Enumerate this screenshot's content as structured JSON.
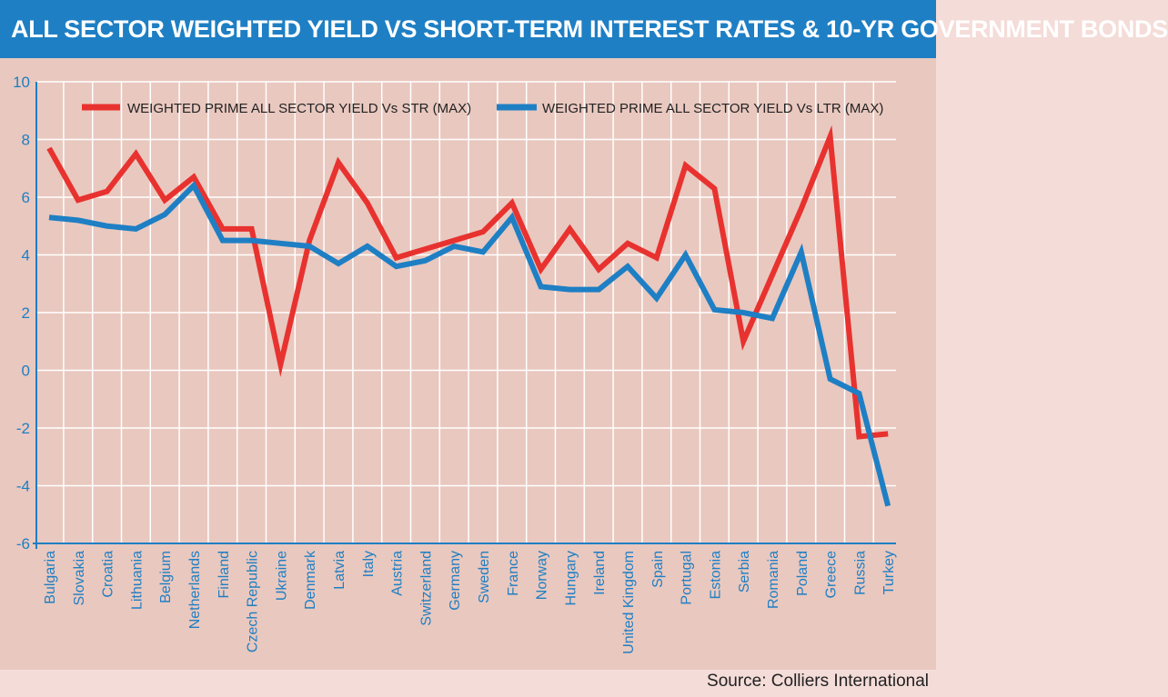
{
  "title": "ALL SECTOR WEIGHTED YIELD VS SHORT-TERM INTEREST RATES & 10-YR GOVERNMENT BONDS",
  "source": "Source: Colliers International",
  "colors": {
    "str": "#e8322f",
    "ltr": "#1e7fc4",
    "grid": "#ffffff",
    "axis": "#1e7fc4",
    "plot_bg": "#e9c8bf"
  },
  "chart_data": {
    "type": "line",
    "title": "ALL SECTOR WEIGHTED YIELD VS SHORT-TERM INTEREST RATES & 10-YR GOVERNMENT BONDS",
    "xlabel": "",
    "ylabel": "",
    "ylim": [
      -6,
      10
    ],
    "yticks": [
      10,
      8,
      6,
      4,
      2,
      0,
      -2,
      -4,
      -6
    ],
    "grid": true,
    "legend_position": "top",
    "categories": [
      "Bulgaria",
      "Slovakia",
      "Croatia",
      "Lithuania",
      "Belgium",
      "Netherlands",
      "Finland",
      "Czech Republic",
      "Ukraine",
      "Denmark",
      "Latvia",
      "Italy",
      "Austria",
      "Switzerland",
      "Germany",
      "Sweden",
      "France",
      "Norway",
      "Hungary",
      "Ireland",
      "United Kingdom",
      "Spain",
      "Portugal",
      "Estonia",
      "Serbia",
      "Romania",
      "Poland",
      "Greece",
      "Russia",
      "Turkey"
    ],
    "series": [
      {
        "name": "WEIGHTED PRIME ALL SECTOR YIELD Vs STR (MAX)",
        "color": "#e8322f",
        "values": [
          7.7,
          5.9,
          6.2,
          7.5,
          5.9,
          6.7,
          4.9,
          4.9,
          0.2,
          4.5,
          7.2,
          5.8,
          3.9,
          4.2,
          4.5,
          4.8,
          5.8,
          3.5,
          4.9,
          3.5,
          4.4,
          3.9,
          7.1,
          6.3,
          1.0,
          3.3,
          5.6,
          8.1,
          -2.3,
          -2.2
        ]
      },
      {
        "name": "WEIGHTED PRIME ALL SECTOR YIELD Vs LTR (MAX)",
        "color": "#1e7fc4",
        "values": [
          5.3,
          5.2,
          5.0,
          4.9,
          5.4,
          6.4,
          4.5,
          4.5,
          4.4,
          4.3,
          3.7,
          4.3,
          3.6,
          3.8,
          4.3,
          4.1,
          5.3,
          2.9,
          2.8,
          2.8,
          3.6,
          2.5,
          4.0,
          2.1,
          2.0,
          1.8,
          4.1,
          -0.3,
          -0.8,
          -4.7
        ]
      }
    ]
  }
}
